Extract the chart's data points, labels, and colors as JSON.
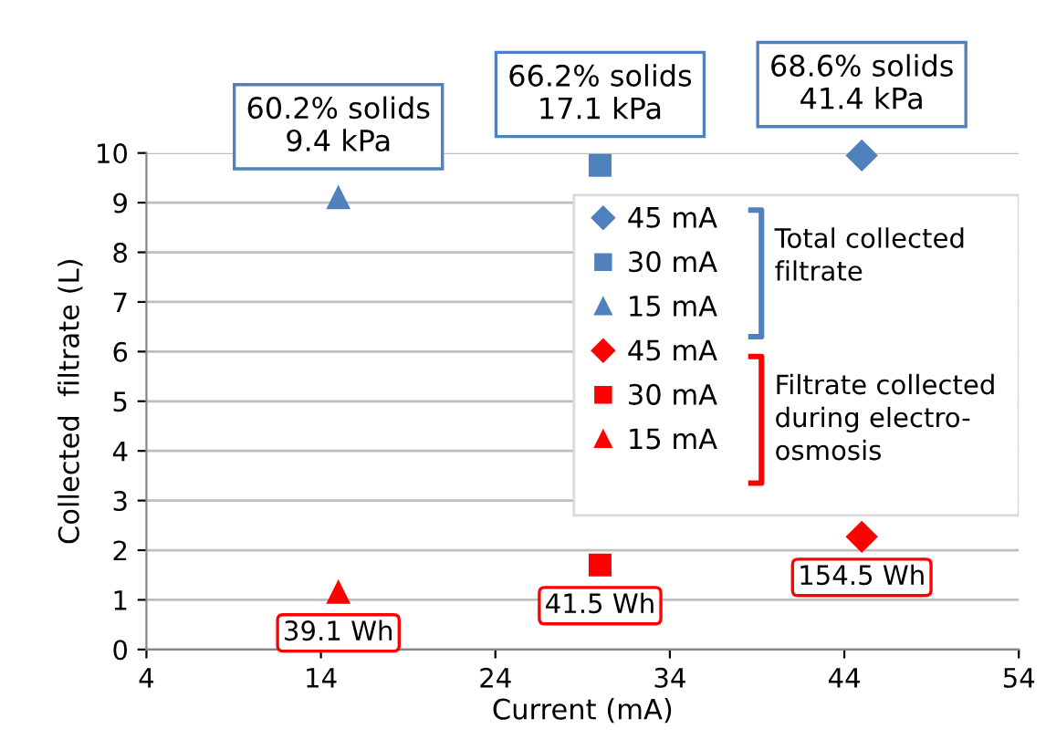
{
  "chart_data": {
    "type": "scatter",
    "xlabel": "Current (mA)",
    "ylabel": "Collected  filtrate (L)",
    "xlim": [
      4,
      54
    ],
    "xticks": [
      4,
      14,
      24,
      34,
      44,
      54
    ],
    "ylim": [
      0,
      10
    ],
    "yticks": [
      0,
      1,
      2,
      3,
      4,
      5,
      6,
      7,
      8,
      9,
      10
    ],
    "grid": "y",
    "legend": "right",
    "series": [
      {
        "name": "45 mA",
        "color": "#4f81bd",
        "marker": "diamond",
        "x": [
          45
        ],
        "values": [
          9.95
        ]
      },
      {
        "name": "30 mA",
        "color": "#4f81bd",
        "marker": "square",
        "x": [
          30
        ],
        "values": [
          9.75
        ]
      },
      {
        "name": "15 mA",
        "color": "#4f81bd",
        "marker": "triangle",
        "x": [
          15
        ],
        "values": [
          9.1
        ]
      },
      {
        "name": "45 mA",
        "color": "#ff0000",
        "marker": "diamond",
        "x": [
          45
        ],
        "values": [
          2.27
        ]
      },
      {
        "name": "30 mA",
        "color": "#ff0000",
        "marker": "square",
        "x": [
          30
        ],
        "values": [
          1.7
        ]
      },
      {
        "name": "15 mA",
        "color": "#ff0000",
        "marker": "triangle",
        "x": [
          15
        ],
        "values": [
          1.15
        ]
      }
    ],
    "annotations": [
      {
        "text": "60.2% solids\n9.4 kPa",
        "x": 15,
        "y": 9.1
      },
      {
        "text": "66.2% solids\n17.1 kPa",
        "x": 30,
        "y": 9.75
      },
      {
        "text": "68.6% solids\n41.4 kPa",
        "x": 45,
        "y": 9.95
      },
      {
        "text": "39.1 Wh",
        "x": 15,
        "y": 1.15
      },
      {
        "text": "41.5 Wh",
        "x": 30,
        "y": 1.7
      },
      {
        "text": "154.5 Wh",
        "x": 45,
        "y": 2.27
      },
      "Total collected\nfiltrate",
      "Filtrate collected\nduring electro-\nosmosis"
    ]
  }
}
